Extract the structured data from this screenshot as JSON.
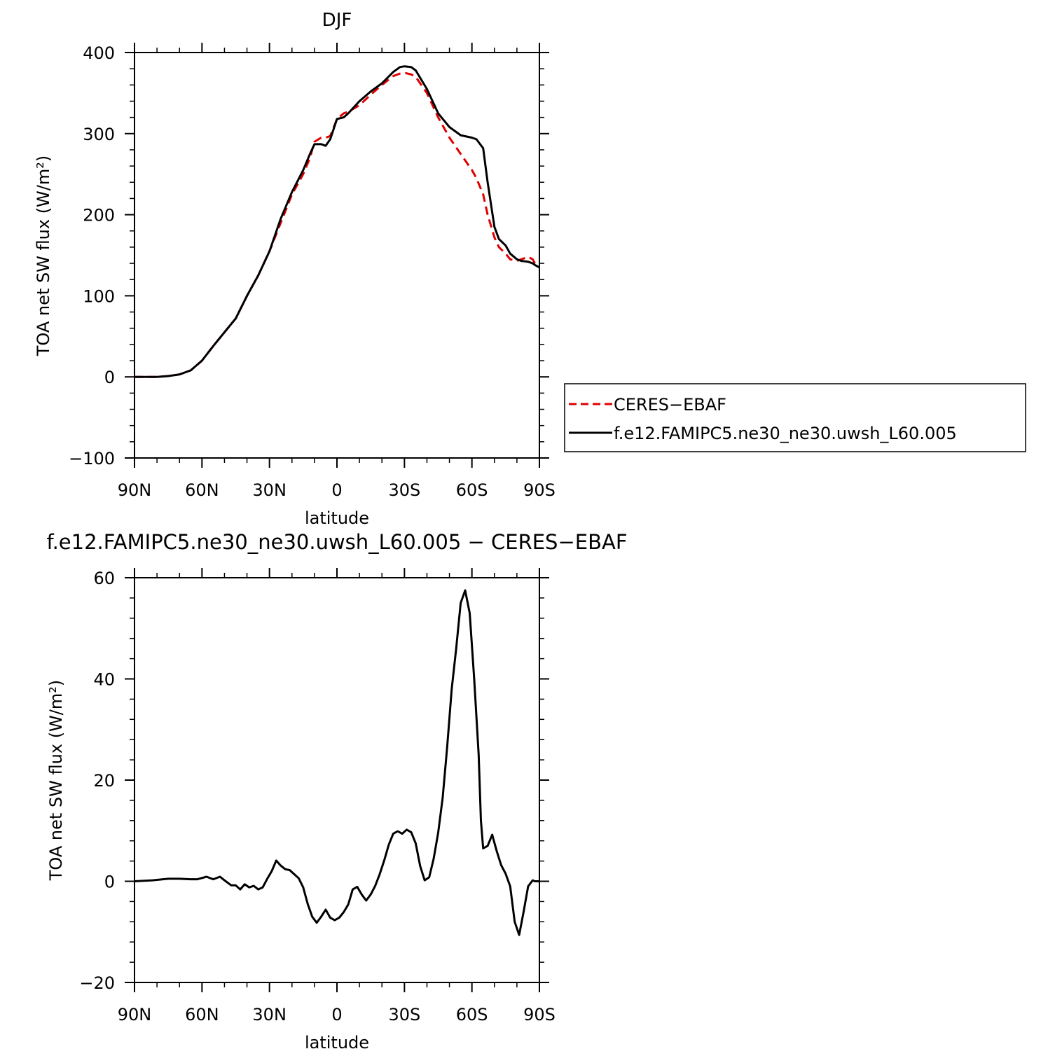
{
  "chart_data": [
    {
      "type": "line",
      "title": "DJF",
      "xlabel": "latitude",
      "ylabel": "TOA net SW flux (W/m²)",
      "xlim": [
        90,
        -90
      ],
      "ylim": [
        -100,
        400
      ],
      "xticks": [
        {
          "value": 90,
          "label": "90N"
        },
        {
          "value": 60,
          "label": "60N"
        },
        {
          "value": 30,
          "label": "30N"
        },
        {
          "value": 0,
          "label": "0"
        },
        {
          "value": -30,
          "label": "30S"
        },
        {
          "value": -60,
          "label": "60S"
        },
        {
          "value": -90,
          "label": "90S"
        }
      ],
      "yticks": [
        {
          "value": 400,
          "label": "400"
        },
        {
          "value": 300,
          "label": "300"
        },
        {
          "value": 200,
          "label": "200"
        },
        {
          "value": 100,
          "label": "100"
        },
        {
          "value": 0,
          "label": "0"
        },
        {
          "value": -100,
          "label": "−100"
        }
      ],
      "legend": {
        "placement": "right"
      },
      "series": [
        {
          "name": "CERES−EBAF",
          "color": "#e00000",
          "style": "dashed",
          "x": [
            90,
            80,
            75,
            70,
            65,
            60,
            55,
            50,
            45,
            40,
            35,
            30,
            25,
            20,
            15,
            12,
            10,
            7,
            5,
            3,
            0,
            -3,
            -5,
            -10,
            -15,
            -20,
            -25,
            -28,
            -30,
            -33,
            -35,
            -40,
            -45,
            -50,
            -55,
            -60,
            -62,
            -65,
            -67,
            -70,
            -72,
            -75,
            -77,
            -80,
            -82,
            -85,
            -87,
            -88,
            -90
          ],
          "values": [
            0,
            0,
            1,
            3,
            8,
            20,
            38,
            55,
            72,
            100,
            125,
            155,
            190,
            225,
            250,
            270,
            290,
            295,
            295,
            297,
            318,
            325,
            327,
            335,
            348,
            360,
            371,
            374,
            375,
            373,
            370,
            350,
            320,
            295,
            275,
            255,
            245,
            225,
            200,
            172,
            160,
            152,
            145,
            143,
            145,
            148,
            145,
            140,
            135
          ]
        },
        {
          "name": "f.e12.FAMIPC5.ne30_ne30.uwsh_L60.005",
          "color": "#000000",
          "style": "solid",
          "x": [
            90,
            80,
            75,
            70,
            65,
            60,
            55,
            50,
            45,
            40,
            35,
            30,
            25,
            20,
            15,
            12,
            10,
            7,
            5,
            3,
            0,
            -3,
            -5,
            -10,
            -15,
            -20,
            -25,
            -28,
            -30,
            -33,
            -35,
            -40,
            -45,
            -50,
            -55,
            -60,
            -62,
            -65,
            -67,
            -70,
            -72,
            -75,
            -77,
            -80,
            -82,
            -85,
            -87,
            -88,
            -90
          ],
          "values": [
            0,
            0,
            1,
            3,
            8,
            20,
            38,
            55,
            72,
            100,
            125,
            155,
            195,
            228,
            255,
            275,
            287,
            287,
            285,
            293,
            318,
            320,
            325,
            340,
            352,
            362,
            376,
            382,
            383,
            382,
            378,
            355,
            325,
            308,
            298,
            295,
            293,
            282,
            240,
            185,
            170,
            162,
            152,
            145,
            143,
            142,
            140,
            138,
            135
          ]
        }
      ]
    },
    {
      "type": "line",
      "title": "f.e12.FAMIPC5.ne30_ne30.uwsh_L60.005 − CERES−EBAF",
      "xlabel": "latitude",
      "ylabel": "TOA net SW flux (W/m²)",
      "xlim": [
        90,
        -90
      ],
      "ylim": [
        -20,
        60
      ],
      "xticks": [
        {
          "value": 90,
          "label": "90N"
        },
        {
          "value": 60,
          "label": "60N"
        },
        {
          "value": 30,
          "label": "30N"
        },
        {
          "value": 0,
          "label": "0"
        },
        {
          "value": -30,
          "label": "30S"
        },
        {
          "value": -60,
          "label": "60S"
        },
        {
          "value": -90,
          "label": "90S"
        }
      ],
      "yticks": [
        {
          "value": 60,
          "label": "60"
        },
        {
          "value": 40,
          "label": "40"
        },
        {
          "value": 20,
          "label": "20"
        },
        {
          "value": 0,
          "label": "0"
        },
        {
          "value": -20,
          "label": "−20"
        }
      ],
      "series": [
        {
          "color": "#000000",
          "style": "solid",
          "x": [
            90,
            82,
            75,
            70,
            65,
            62,
            58,
            55,
            52,
            50,
            47,
            45,
            43,
            41,
            39,
            37,
            35,
            33,
            31,
            29,
            27,
            25,
            23,
            21,
            19,
            17,
            15,
            13,
            11,
            9,
            7,
            5,
            3,
            1,
            -1,
            -3,
            -5,
            -7,
            -9,
            -11,
            -13,
            -15,
            -17,
            -19,
            -21,
            -23,
            -25,
            -27,
            -29,
            -31,
            -33,
            -35,
            -37,
            -39,
            -41,
            -43,
            -45,
            -47,
            -49,
            -51,
            -53,
            -55,
            -57,
            -59,
            -61,
            -63,
            -64,
            -65,
            -67,
            -69,
            -71,
            -73,
            -75,
            -77,
            -78,
            -79,
            -81,
            -83,
            -85,
            -87,
            -88,
            -89,
            -90
          ],
          "values": [
            0,
            0.2,
            0.5,
            0.5,
            0.4,
            0.4,
            0.9,
            0.4,
            0.9,
            0.2,
            -0.8,
            -0.8,
            -1.6,
            -0.6,
            -1.2,
            -0.9,
            -1.6,
            -1.2,
            0.5,
            2.0,
            4.1,
            3.1,
            2.4,
            2.2,
            1.4,
            0.6,
            -1.2,
            -4.5,
            -7.0,
            -8.2,
            -7.0,
            -5.6,
            -7.2,
            -7.7,
            -7.2,
            -6.1,
            -4.6,
            -1.6,
            -1.1,
            -2.6,
            -3.8,
            -2.6,
            -0.9,
            1.4,
            4.1,
            7.2,
            9.4,
            9.9,
            9.4,
            10.2,
            9.7,
            7.5,
            3.0,
            0.2,
            0.8,
            4.5,
            9.6,
            16.5,
            26.5,
            38.0,
            46.0,
            55.0,
            57.5,
            53.0,
            40.0,
            25.0,
            12.0,
            6.5,
            7.0,
            9.2,
            6.0,
            3.2,
            1.5,
            -1.0,
            -4.5,
            -8.0,
            -10.6,
            -6.0,
            -1.0,
            0.2,
            0,
            0,
            0
          ]
        }
      ]
    }
  ]
}
